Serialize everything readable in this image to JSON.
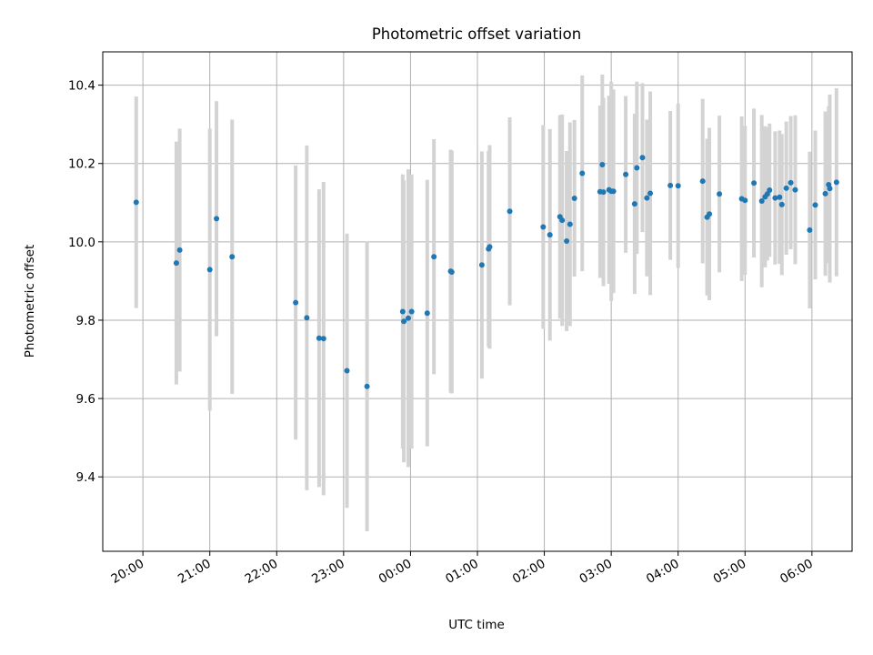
{
  "chart_data": {
    "type": "scatter",
    "title": "Photometric offset variation",
    "xlabel": "UTC time",
    "ylabel": "Photometric offset",
    "x_tick_labels": [
      "20:00",
      "21:00",
      "22:00",
      "23:00",
      "00:00",
      "01:00",
      "02:00",
      "03:00",
      "04:00",
      "05:00",
      "06:00"
    ],
    "y_tick_labels": [
      "9.4",
      "9.6",
      "9.8",
      "10.0",
      "10.2",
      "10.4"
    ],
    "y_ticks": [
      9.4,
      9.6,
      9.8,
      10.0,
      10.2,
      10.4
    ],
    "xlim": [
      "19:24",
      "06:36"
    ],
    "ylim": [
      9.21,
      10.485
    ],
    "grid": true,
    "point_color": "#1f77b4",
    "errorbar_color": "#d3d3d3",
    "series": [
      {
        "x": [
          "19:54",
          "20:30",
          "20:33",
          "21:00",
          "21:06",
          "21:20",
          "22:17",
          "22:27",
          "22:38",
          "22:42",
          "23:03",
          "23:21",
          "23:53",
          "23:54",
          "23:58",
          "24:01",
          "24:15",
          "24:21",
          "24:36",
          "24:37",
          "25:04",
          "25:10",
          "25:11",
          "25:29",
          "25:59",
          "26:05",
          "26:14",
          "26:16",
          "26:20",
          "26:23",
          "26:27",
          "26:34",
          "26:50",
          "26:52",
          "26:53",
          "26:58",
          "27:00",
          "27:02",
          "27:13",
          "27:21",
          "27:23",
          "27:28",
          "27:32",
          "27:35",
          "27:53",
          "28:00",
          "28:22",
          "28:26",
          "28:28",
          "28:37",
          "28:57",
          "29:00",
          "29:08",
          "29:15",
          "29:18",
          "29:20",
          "29:22",
          "29:27",
          "29:31",
          "29:33",
          "29:37",
          "29:41",
          "29:45",
          "29:58",
          "30:03",
          "30:12",
          "30:15",
          "30:16",
          "30:22"
        ],
        "y": [
          10.101,
          9.946,
          9.979,
          9.929,
          10.059,
          9.962,
          9.845,
          9.806,
          9.754,
          9.753,
          9.671,
          9.631,
          9.822,
          9.797,
          9.805,
          9.822,
          9.818,
          9.962,
          9.925,
          9.923,
          9.941,
          9.982,
          9.987,
          10.078,
          10.038,
          10.018,
          10.064,
          10.055,
          10.002,
          10.045,
          10.111,
          10.175,
          10.128,
          10.197,
          10.127,
          10.133,
          10.129,
          10.129,
          10.172,
          10.097,
          10.189,
          10.215,
          10.112,
          10.124,
          10.144,
          10.143,
          10.155,
          10.063,
          10.071,
          10.122,
          10.11,
          10.106,
          10.15,
          10.104,
          10.115,
          10.122,
          10.132,
          10.112,
          10.114,
          10.095,
          10.137,
          10.151,
          10.133,
          10.03,
          10.094,
          10.123,
          10.146,
          10.136,
          10.152
        ],
        "yerr": [
          0.27,
          0.31,
          0.31,
          0.36,
          0.3,
          0.35,
          0.35,
          0.44,
          0.38,
          0.4,
          0.35,
          0.37,
          0.35,
          0.36,
          0.38,
          0.35,
          0.34,
          0.3,
          0.31,
          0.31,
          0.29,
          0.25,
          0.26,
          0.24,
          0.26,
          0.27,
          0.26,
          0.27,
          0.23,
          0.26,
          0.2,
          0.25,
          0.22,
          0.23,
          0.24,
          0.24,
          0.28,
          0.26,
          0.2,
          0.23,
          0.22,
          0.19,
          0.2,
          0.26,
          0.19,
          0.21,
          0.21,
          0.2,
          0.22,
          0.2,
          0.21,
          0.19,
          0.19,
          0.22,
          0.18,
          0.17,
          0.17,
          0.17,
          0.17,
          0.18,
          0.17,
          0.17,
          0.19,
          0.2,
          0.19,
          0.21,
          0.2,
          0.24,
          0.24
        ]
      }
    ]
  }
}
